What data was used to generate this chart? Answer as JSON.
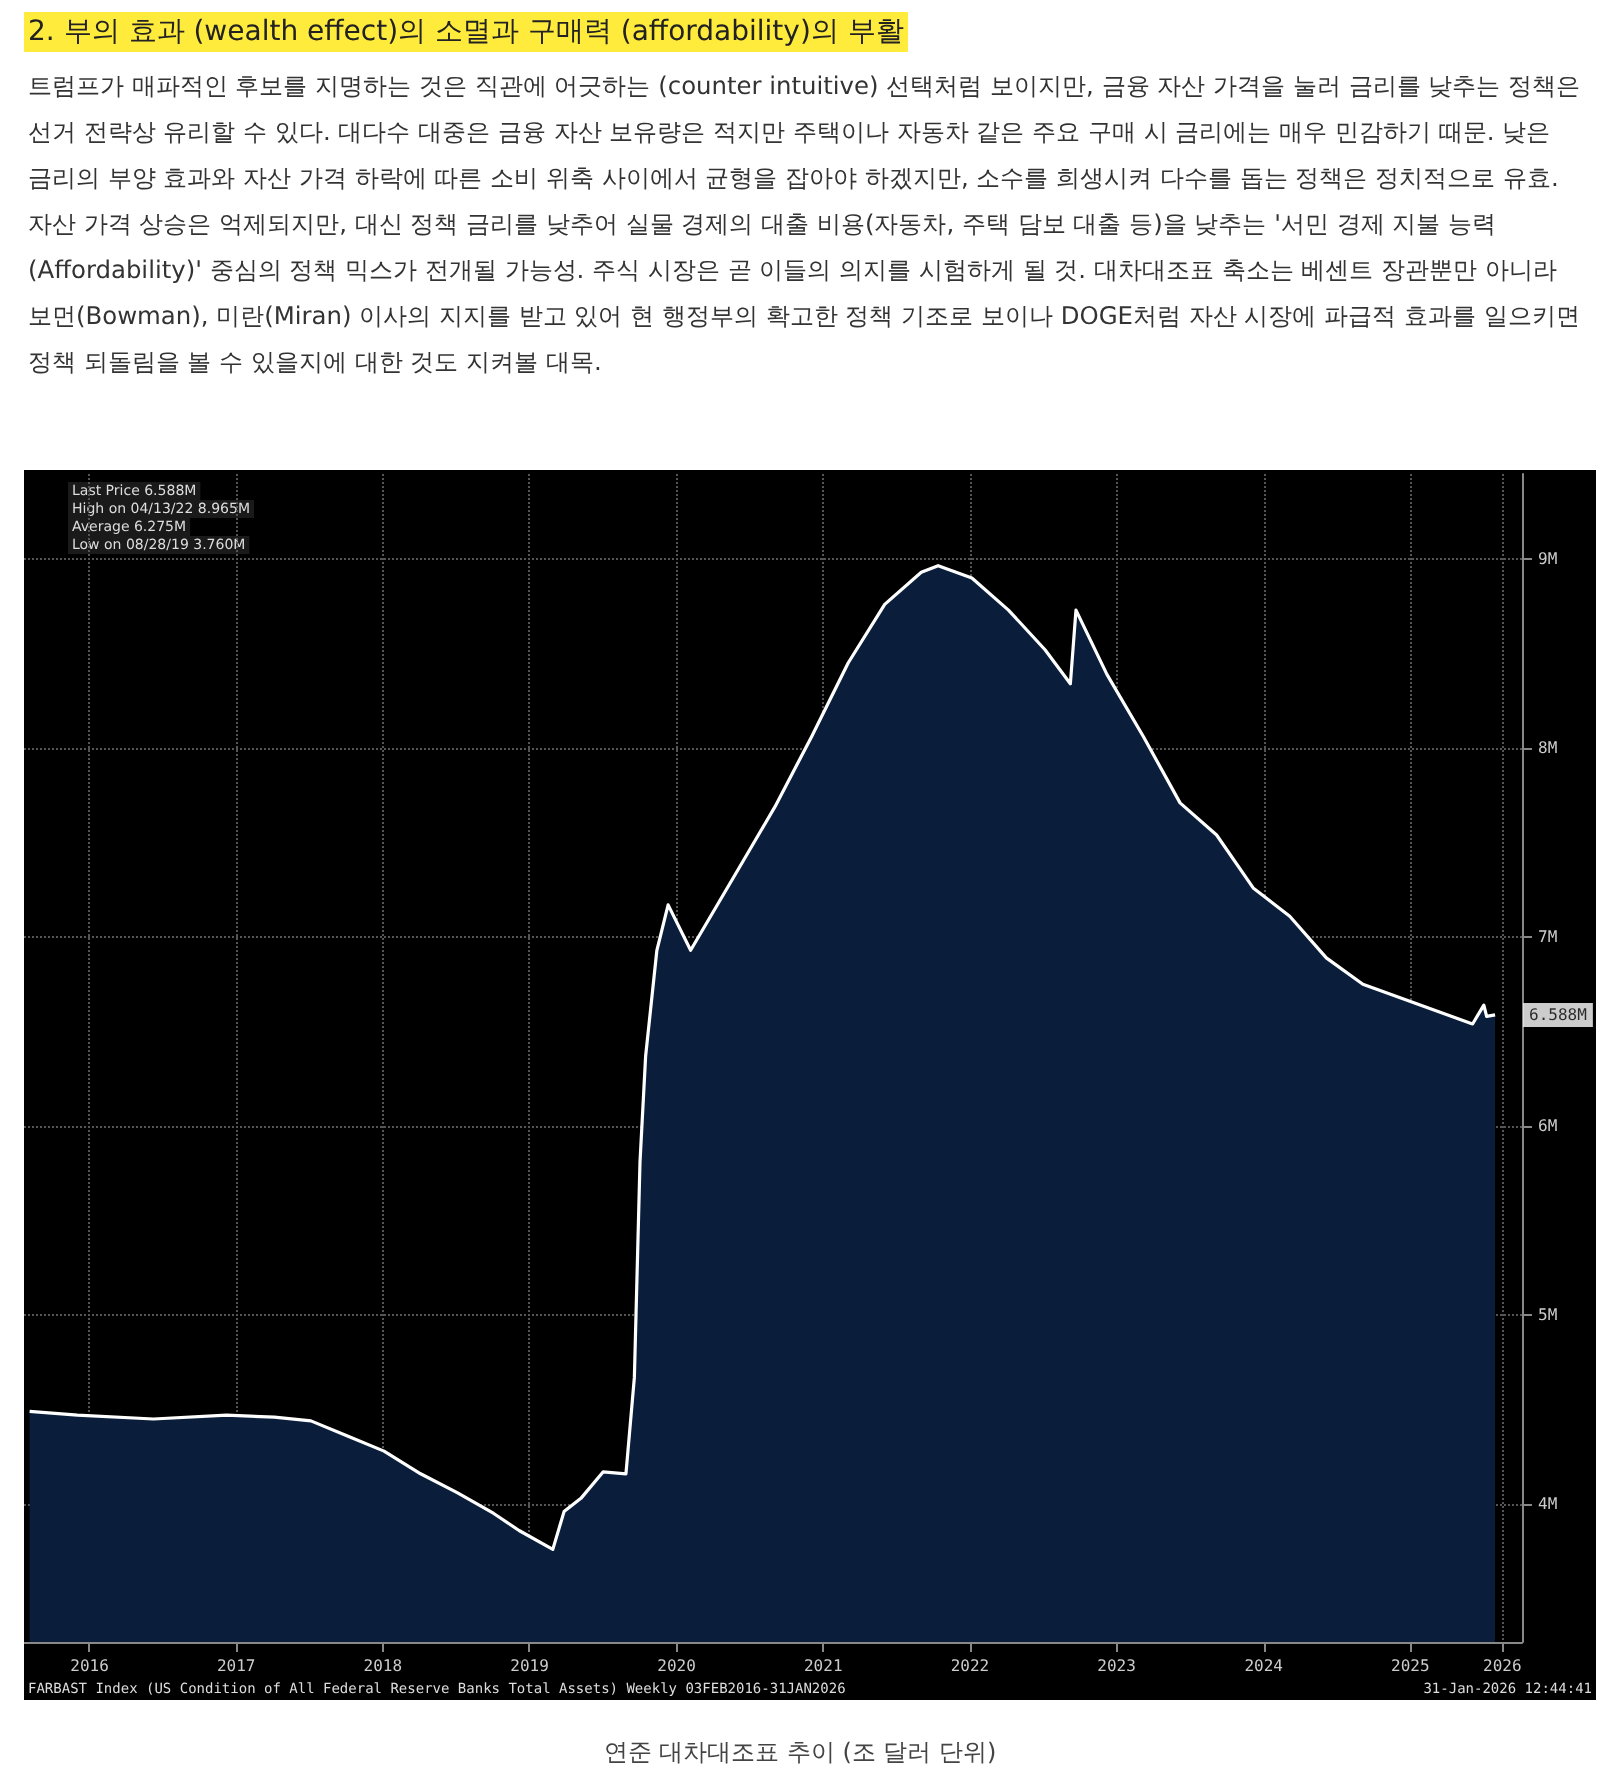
{
  "chart_data": {
    "type": "area",
    "title": "2. 부의 효과 (wealth effect)의 소멸과 구매력 (affordability)의 부활",
    "subtitle": "트럼프가 매파적인 후보를 지명하는 것은 직관에 어긋하는 (counter intuitive) 선택처럼 보이지만, 금융 자산 가격을 눌러 금리를 낮추는 정책은 선거 전략상 유리할 수 있다. 대다수 대중은 금융 자산 보유량은 적지만 주택이나 자동차 같은 주요 구매 시 금리에는 매우 민감하기 때문. 낮은 금리의 부양 효과와 자산 가격 하락에 따른 소비 위축 사이에서 균형을 잡아야 하겠지만, 소수를 희생시켜 다수를 돕는 정책은 정치적으로 유효. 자산 가격 상승은 억제되지만, 대신 정책 금리를 낮추어 실물 경제의 대출 비용(자동차, 주택 담보 대출 등)을 낮추는 '서민 경제 지불 능력(Affordability)' 중심의 정책 믹스가 전개될 가능성. 주식 시장은 곧 이들의 의지를 시험하게 될 것. 대차대조표 축소는 베센트 장관뿐만 아니라 보먼(Bowman), 미란(Miran) 이사의 지지를 받고 있어 현 행정부의 확고한 정책 기조로 보이나 DOGE처럼 자산 시장에 파급적 효과를 일으키면 정책 되돌림을 볼 수 있을지에 대한 것도 지켜볼 대목.",
    "x": [
      "2016-02-03",
      "2016-06-01",
      "2016-12-07",
      "2017-06-07",
      "2017-10-04",
      "2018-01-03",
      "2018-04-04",
      "2018-07-04",
      "2018-10-03",
      "2019-01-02",
      "2019-04-03",
      "2019-06-05",
      "2019-08-28",
      "2019-09-25",
      "2019-11-06",
      "2019-12-31",
      "2020-02-26",
      "2020-03-18",
      "2020-04-01",
      "2020-04-15",
      "2020-05-13",
      "2020-06-10",
      "2020-08-05",
      "2020-12-02",
      "2021-03-03",
      "2021-06-02",
      "2021-09-01",
      "2021-12-01",
      "2022-03-02",
      "2022-04-13",
      "2022-07-06",
      "2022-10-05",
      "2023-01-04",
      "2023-03-08",
      "2023-03-22",
      "2023-06-07",
      "2023-09-06",
      "2023-12-06",
      "2024-03-06",
      "2024-06-05",
      "2024-09-04",
      "2024-12-04",
      "2025-03-05",
      "2025-06-04",
      "2025-09-03",
      "2025-12-03",
      "2025-12-31",
      "2026-01-07",
      "2026-01-28"
    ],
    "series": [
      {
        "color": "#0a1e3c",
        "values": [
          4.49,
          4.47,
          4.45,
          4.47,
          4.46,
          4.44,
          4.36,
          4.28,
          4.16,
          4.06,
          3.95,
          3.86,
          3.76,
          3.96,
          4.03,
          4.17,
          4.16,
          4.67,
          5.81,
          6.37,
          6.93,
          7.17,
          6.93,
          7.36,
          7.69,
          8.06,
          8.45,
          8.76,
          8.93,
          8.965,
          8.9,
          8.73,
          8.52,
          8.34,
          8.73,
          8.39,
          8.06,
          7.71,
          7.54,
          7.26,
          7.11,
          6.89,
          6.75,
          6.68,
          6.61,
          6.54,
          6.64,
          6.58,
          6.588
        ]
      }
    ],
    "xlim": [
      "2016-01-20",
      "2026-04-05"
    ],
    "xticks": [
      {
        "value": "2016-07-01",
        "label": "2016"
      },
      {
        "value": "2017-07-01",
        "label": "2017"
      },
      {
        "value": "2018-07-01",
        "label": "2018"
      },
      {
        "value": "2019-07-01",
        "label": "2019"
      },
      {
        "value": "2020-07-01",
        "label": "2020"
      },
      {
        "value": "2021-07-01",
        "label": "2021"
      },
      {
        "value": "2022-07-01",
        "label": "2022"
      },
      {
        "value": "2023-07-01",
        "label": "2023"
      },
      {
        "value": "2024-07-01",
        "label": "2024"
      },
      {
        "value": "2025-07-01",
        "label": "2025"
      },
      {
        "value": "2026-02-15",
        "label": "2026"
      }
    ],
    "ylim": [
      3.27,
      9.45
    ],
    "yticks": [
      {
        "value": 4,
        "label": "4M"
      },
      {
        "value": 5,
        "label": "5M"
      },
      {
        "value": 6,
        "label": "6M"
      },
      {
        "value": 7,
        "label": "7M"
      },
      {
        "value": 8,
        "label": "8M"
      },
      {
        "value": 9,
        "label": "9M"
      }
    ],
    "grid": true,
    "annotations": [
      "Last Price 6.588M",
      "High on 04/13/22 8.965M",
      "Average 6.275M",
      "Low on 08/28/19 3.760M",
      {
        "text": "6.588M",
        "x": "2026-01-28",
        "y": 6.588
      },
      "FARBAST Index (US Condition of All Federal Reserve Banks Total Assets) Weekly 03FEB2016-31JAN2026",
      "31-Jan-2026 12:44:41",
      "연준 대차대조표 추이 (조 달러 단위)"
    ]
  }
}
